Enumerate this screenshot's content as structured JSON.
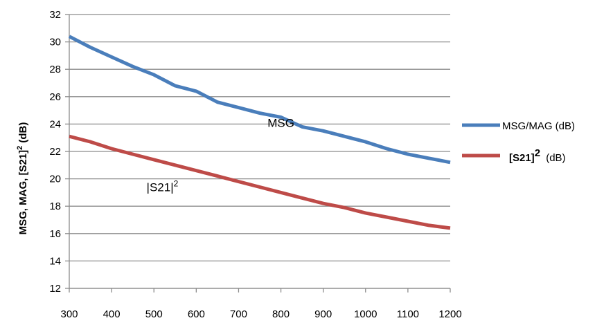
{
  "chart_data": {
    "type": "line",
    "ylabel": {
      "main": "MSG, MAG, [S21]",
      "sup": "2",
      "unit": " (dB)"
    },
    "xlim": [
      300,
      1200
    ],
    "ylim": [
      12,
      32
    ],
    "x_ticks": [
      300,
      400,
      500,
      600,
      700,
      800,
      900,
      1000,
      1100,
      1200
    ],
    "y_ticks": [
      12,
      14,
      16,
      18,
      20,
      22,
      24,
      26,
      28,
      30,
      32
    ],
    "grid": "horizontal",
    "legend_position": "right",
    "x": [
      300,
      350,
      400,
      450,
      500,
      550,
      600,
      650,
      700,
      750,
      800,
      850,
      900,
      950,
      1000,
      1050,
      1100,
      1150,
      1200
    ],
    "series": [
      {
        "name": "MSG/MAG (dB)",
        "color": "#4A7EBB",
        "values": [
          30.4,
          29.6,
          28.9,
          28.2,
          27.6,
          26.8,
          26.4,
          25.6,
          25.2,
          24.8,
          24.5,
          23.8,
          23.5,
          23.1,
          22.7,
          22.2,
          21.8,
          21.5,
          21.2
        ]
      },
      {
        "name": "[S21]",
        "name_sup": "2",
        "name_unit": " (dB)",
        "color": "#BE4B48",
        "values": [
          23.1,
          22.7,
          22.2,
          21.8,
          21.4,
          21.0,
          20.6,
          20.2,
          19.8,
          19.4,
          19.0,
          18.6,
          18.2,
          17.9,
          17.5,
          17.2,
          16.9,
          16.6,
          16.4
        ]
      }
    ],
    "annotations": [
      {
        "text": "MSG",
        "x": 800,
        "y": 23.8
      },
      {
        "text": "|S21|",
        "sup": "2",
        "x": 520,
        "y": 19.1
      }
    ]
  }
}
